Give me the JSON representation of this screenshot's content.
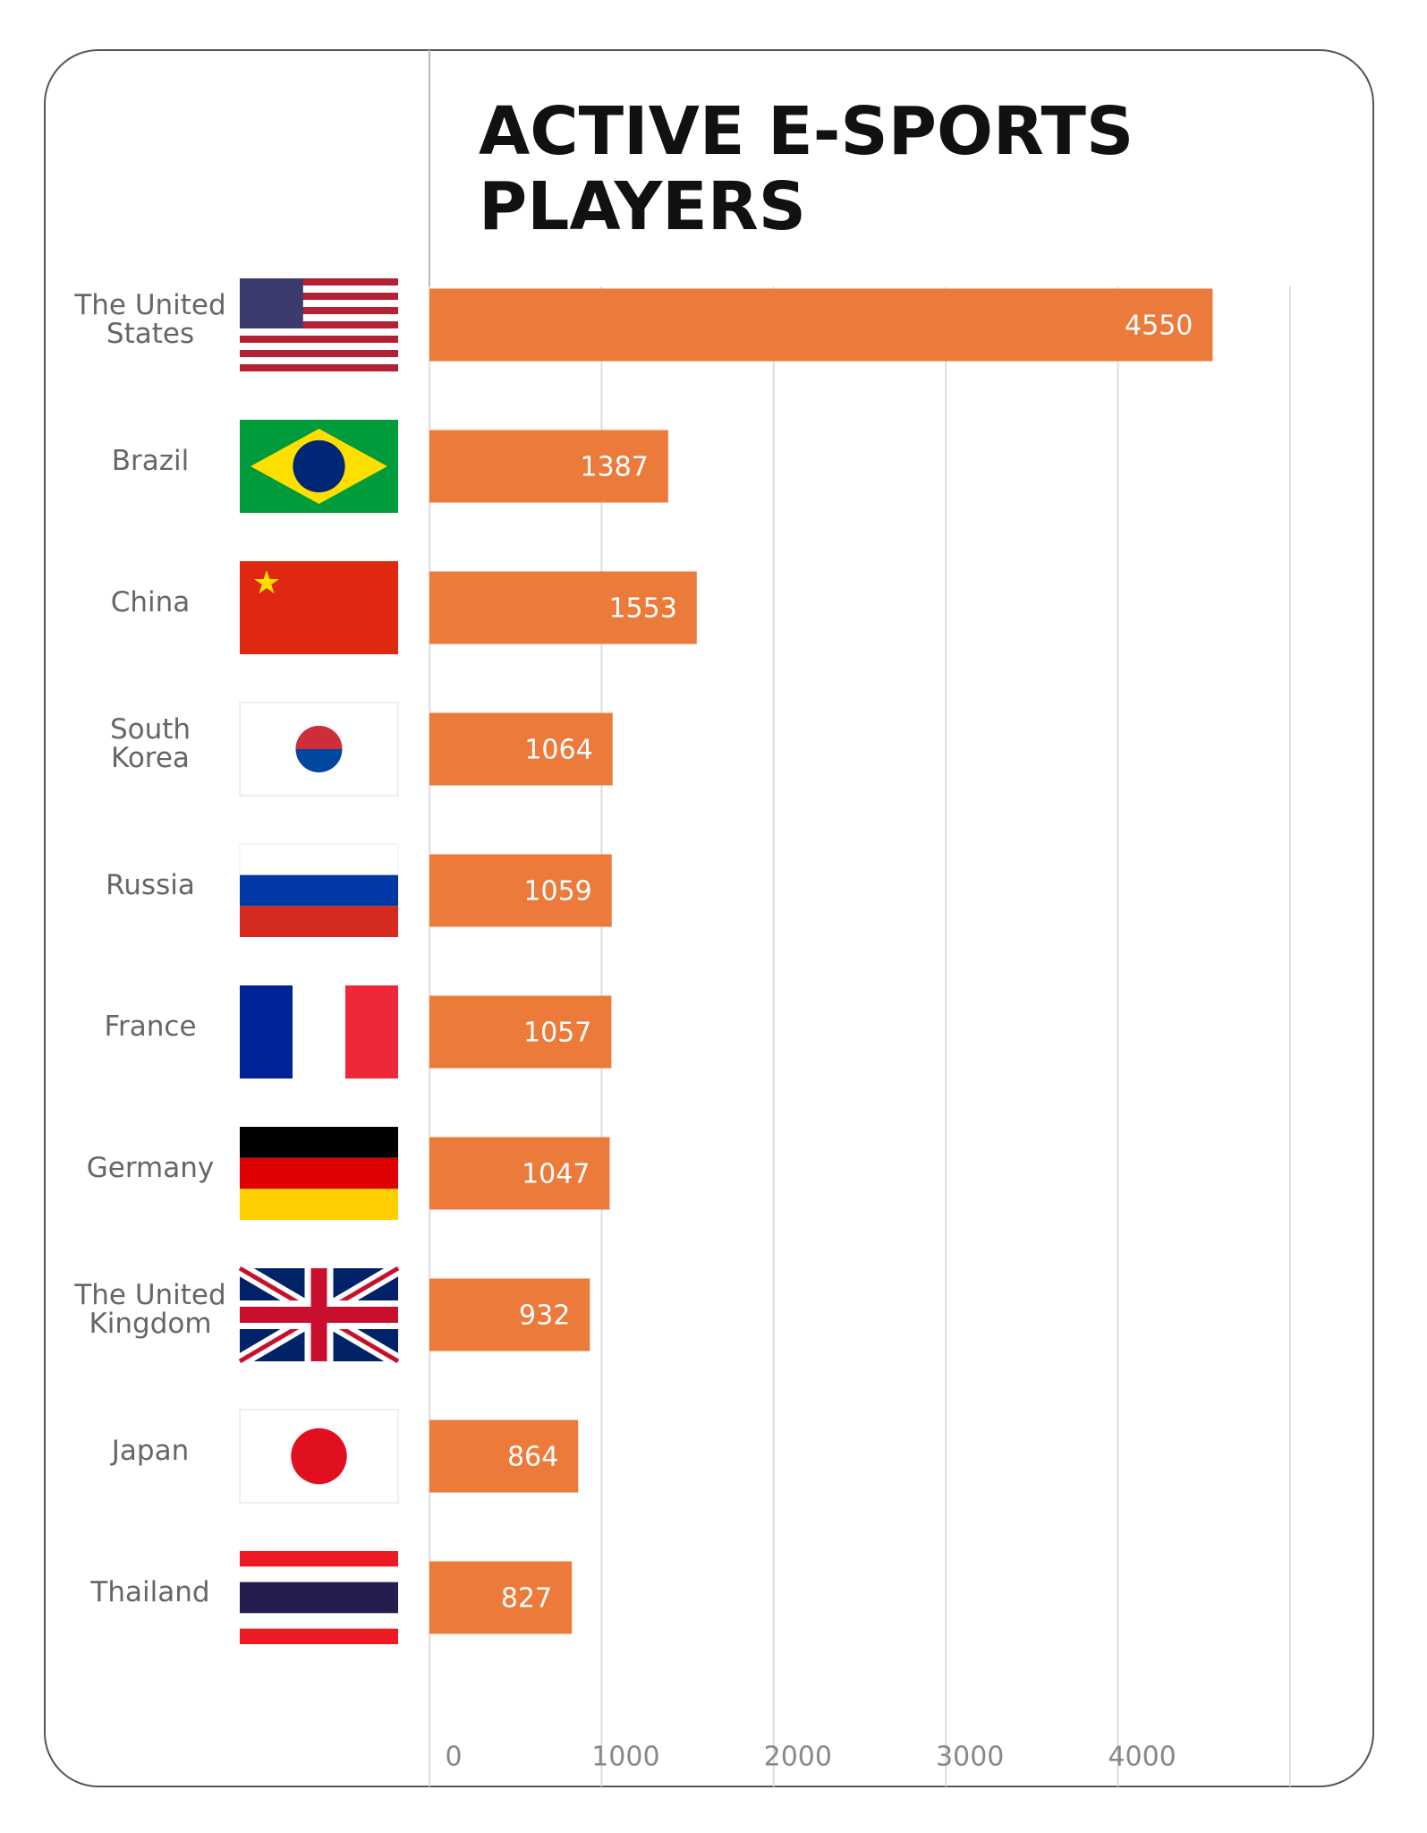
{
  "chart_data": {
    "type": "barh",
    "title": "ACTIVE E-SPORTS\nPLAYERS",
    "categories": [
      "The United\nStates",
      "Brazil",
      "China",
      "South\nKorea",
      "Russia",
      "France",
      "Germany",
      "The United\nKingdom",
      "Japan",
      "Thailand"
    ],
    "values": [
      4550,
      1387,
      1553,
      1064,
      1059,
      1057,
      1047,
      932,
      864,
      827
    ],
    "color": "#ec7a3a",
    "xlim": [
      0,
      5000
    ],
    "xticks": [
      0,
      1000,
      2000,
      3000,
      4000
    ],
    "grid": true
  }
}
